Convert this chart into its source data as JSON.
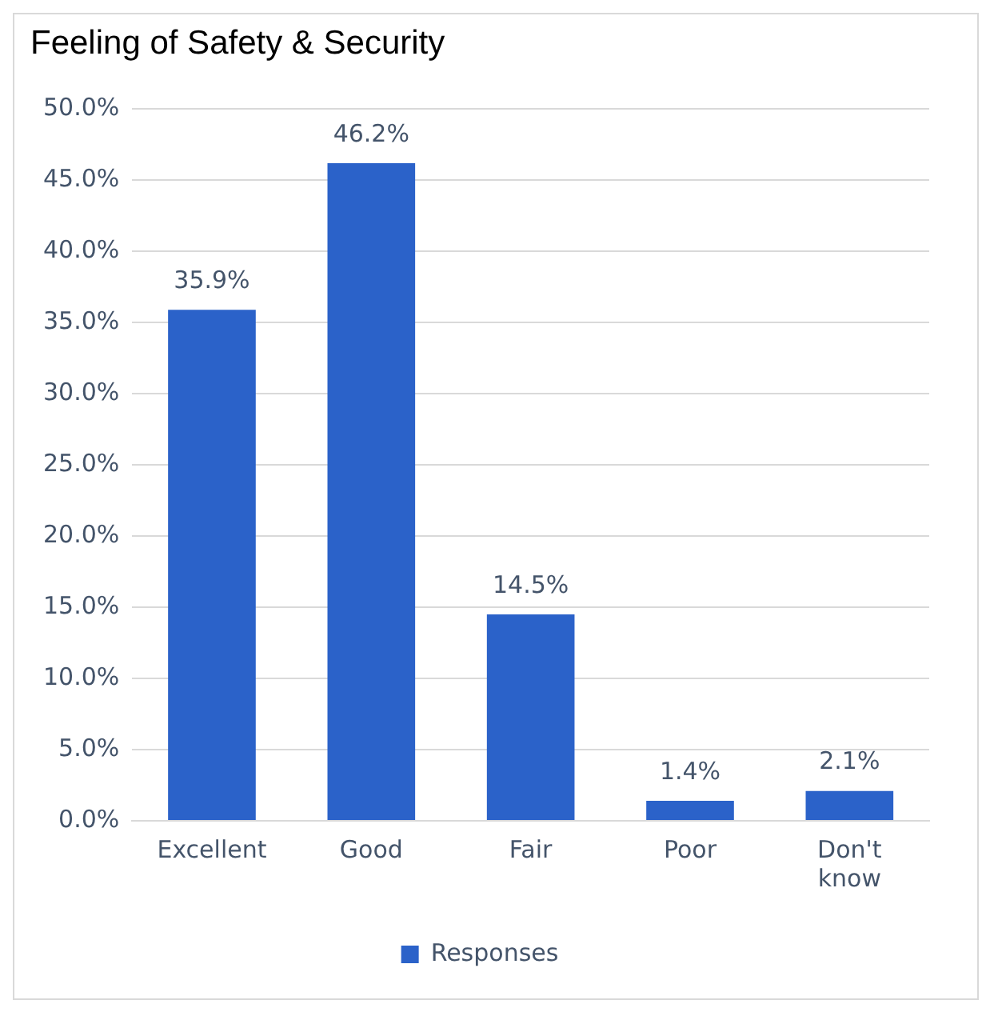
{
  "chart_data": {
    "type": "bar",
    "title": "Feeling of Safety & Security",
    "categories": [
      "Excellent",
      "Good",
      "Fair",
      "Poor",
      "Don't know"
    ],
    "series": [
      {
        "name": "Responses",
        "color": "#2b62c9",
        "values": [
          35.9,
          46.2,
          14.5,
          1.4,
          2.1
        ],
        "value_labels": [
          "35.9%",
          "46.2%",
          "14.5%",
          "1.4%",
          "2.1%"
        ]
      }
    ],
    "ylim": [
      0,
      50
    ],
    "yticks": [
      {
        "value": 0,
        "label": "0.0%"
      },
      {
        "value": 5,
        "label": "5.0%"
      },
      {
        "value": 10,
        "label": "10.0%"
      },
      {
        "value": 15,
        "label": "15.0%"
      },
      {
        "value": 20,
        "label": "20.0%"
      },
      {
        "value": 25,
        "label": "25.0%"
      },
      {
        "value": 30,
        "label": "30.0%"
      },
      {
        "value": 35,
        "label": "35.0%"
      },
      {
        "value": 40,
        "label": "40.0%"
      },
      {
        "value": 45,
        "label": "45.0%"
      },
      {
        "value": 50,
        "label": "50.0%"
      }
    ],
    "grid": "y",
    "legend": "bottom"
  }
}
